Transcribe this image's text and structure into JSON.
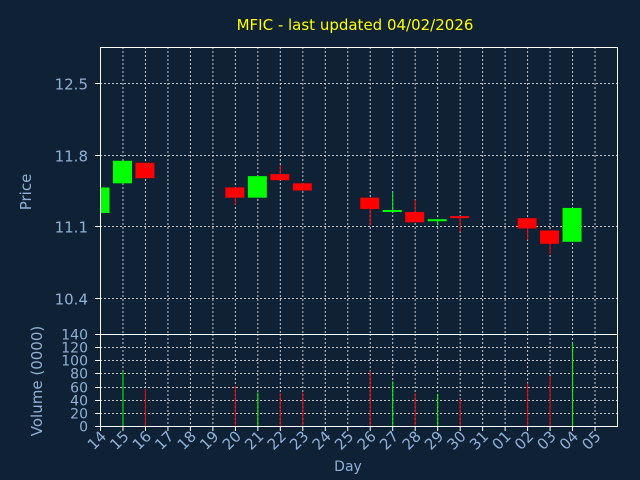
{
  "colors": {
    "background": "#0f2135",
    "frame": "#ffffff",
    "grid": "#c8c8c8",
    "title": "#ffff00",
    "axis_text": "#8fb0d8",
    "up": "#00ff00",
    "down": "#ff0000"
  },
  "chart_data": [
    {
      "type": "candlestick",
      "title": "MFIC - last updated 04/02/2026",
      "ylabel": "Price",
      "ylim": [
        10.05,
        12.85
      ],
      "yticks": [
        "12.5",
        "11.8",
        "11.1",
        "10.4"
      ],
      "ytick_values": [
        12.5,
        11.8,
        11.1,
        10.4
      ],
      "grid": true,
      "x_ticks": [
        "14",
        "15",
        "16",
        "17",
        "18",
        "19",
        "20",
        "21",
        "22",
        "23",
        "24",
        "25",
        "26",
        "27",
        "28",
        "29",
        "30",
        "31",
        "01",
        "02",
        "03",
        "04",
        "05"
      ],
      "candles": [
        {
          "day": "14",
          "open": 11.23,
          "close": 11.48,
          "high": 11.48,
          "low": 11.23
        },
        {
          "day": "15",
          "open": 11.52,
          "close": 11.74,
          "high": 11.74,
          "low": 11.52
        },
        {
          "day": "16",
          "open": 11.72,
          "close": 11.57,
          "high": 11.72,
          "low": 11.57
        },
        {
          "day": "20",
          "open": 11.48,
          "close": 11.38,
          "high": 11.48,
          "low": 11.31
        },
        {
          "day": "21",
          "open": 11.38,
          "close": 11.59,
          "high": 11.59,
          "low": 11.38
        },
        {
          "day": "22",
          "open": 11.61,
          "close": 11.55,
          "high": 11.7,
          "low": 11.55
        },
        {
          "day": "23",
          "open": 11.52,
          "close": 11.45,
          "high": 11.52,
          "low": 11.45
        },
        {
          "day": "26",
          "open": 11.38,
          "close": 11.27,
          "high": 11.38,
          "low": 11.11
        },
        {
          "day": "27",
          "open": 11.24,
          "close": 11.26,
          "high": 11.43,
          "low": 11.24
        },
        {
          "day": "28",
          "open": 11.24,
          "close": 11.14,
          "high": 11.36,
          "low": 11.14
        },
        {
          "day": "29",
          "open": 11.16,
          "close": 11.17,
          "high": 11.17,
          "low": 11.11
        },
        {
          "day": "30",
          "open": 11.2,
          "close": 11.18,
          "high": 11.2,
          "low": 11.05
        },
        {
          "day": "02",
          "open": 11.18,
          "close": 11.08,
          "high": 11.18,
          "low": 10.97
        },
        {
          "day": "03",
          "open": 11.06,
          "close": 10.93,
          "high": 11.06,
          "low": 10.83
        },
        {
          "day": "04",
          "open": 10.95,
          "close": 11.28,
          "high": 11.28,
          "low": 10.95
        }
      ]
    },
    {
      "type": "bar",
      "ylabel": "Volume (0000)",
      "ylim": [
        0,
        140
      ],
      "yticks": [
        "0",
        "20",
        "40",
        "60",
        "80",
        "100",
        "120",
        "140"
      ],
      "ytick_values": [
        0,
        20,
        40,
        60,
        80,
        100,
        120,
        140
      ],
      "xlabel": "Day",
      "bars": [
        {
          "day": "15",
          "value": 84,
          "direction": "up"
        },
        {
          "day": "16",
          "value": 56,
          "direction": "down"
        },
        {
          "day": "20",
          "value": 61,
          "direction": "down"
        },
        {
          "day": "21",
          "value": 51,
          "direction": "up"
        },
        {
          "day": "22",
          "value": 50,
          "direction": "down"
        },
        {
          "day": "23",
          "value": 51,
          "direction": "down"
        },
        {
          "day": "26",
          "value": 84,
          "direction": "down"
        },
        {
          "day": "27",
          "value": 68,
          "direction": "up"
        },
        {
          "day": "28",
          "value": 50,
          "direction": "down"
        },
        {
          "day": "29",
          "value": 49,
          "direction": "up"
        },
        {
          "day": "30",
          "value": 41,
          "direction": "down"
        },
        {
          "day": "02",
          "value": 65,
          "direction": "down"
        },
        {
          "day": "03",
          "value": 76,
          "direction": "down"
        },
        {
          "day": "04",
          "value": 126,
          "direction": "up"
        }
      ]
    }
  ]
}
